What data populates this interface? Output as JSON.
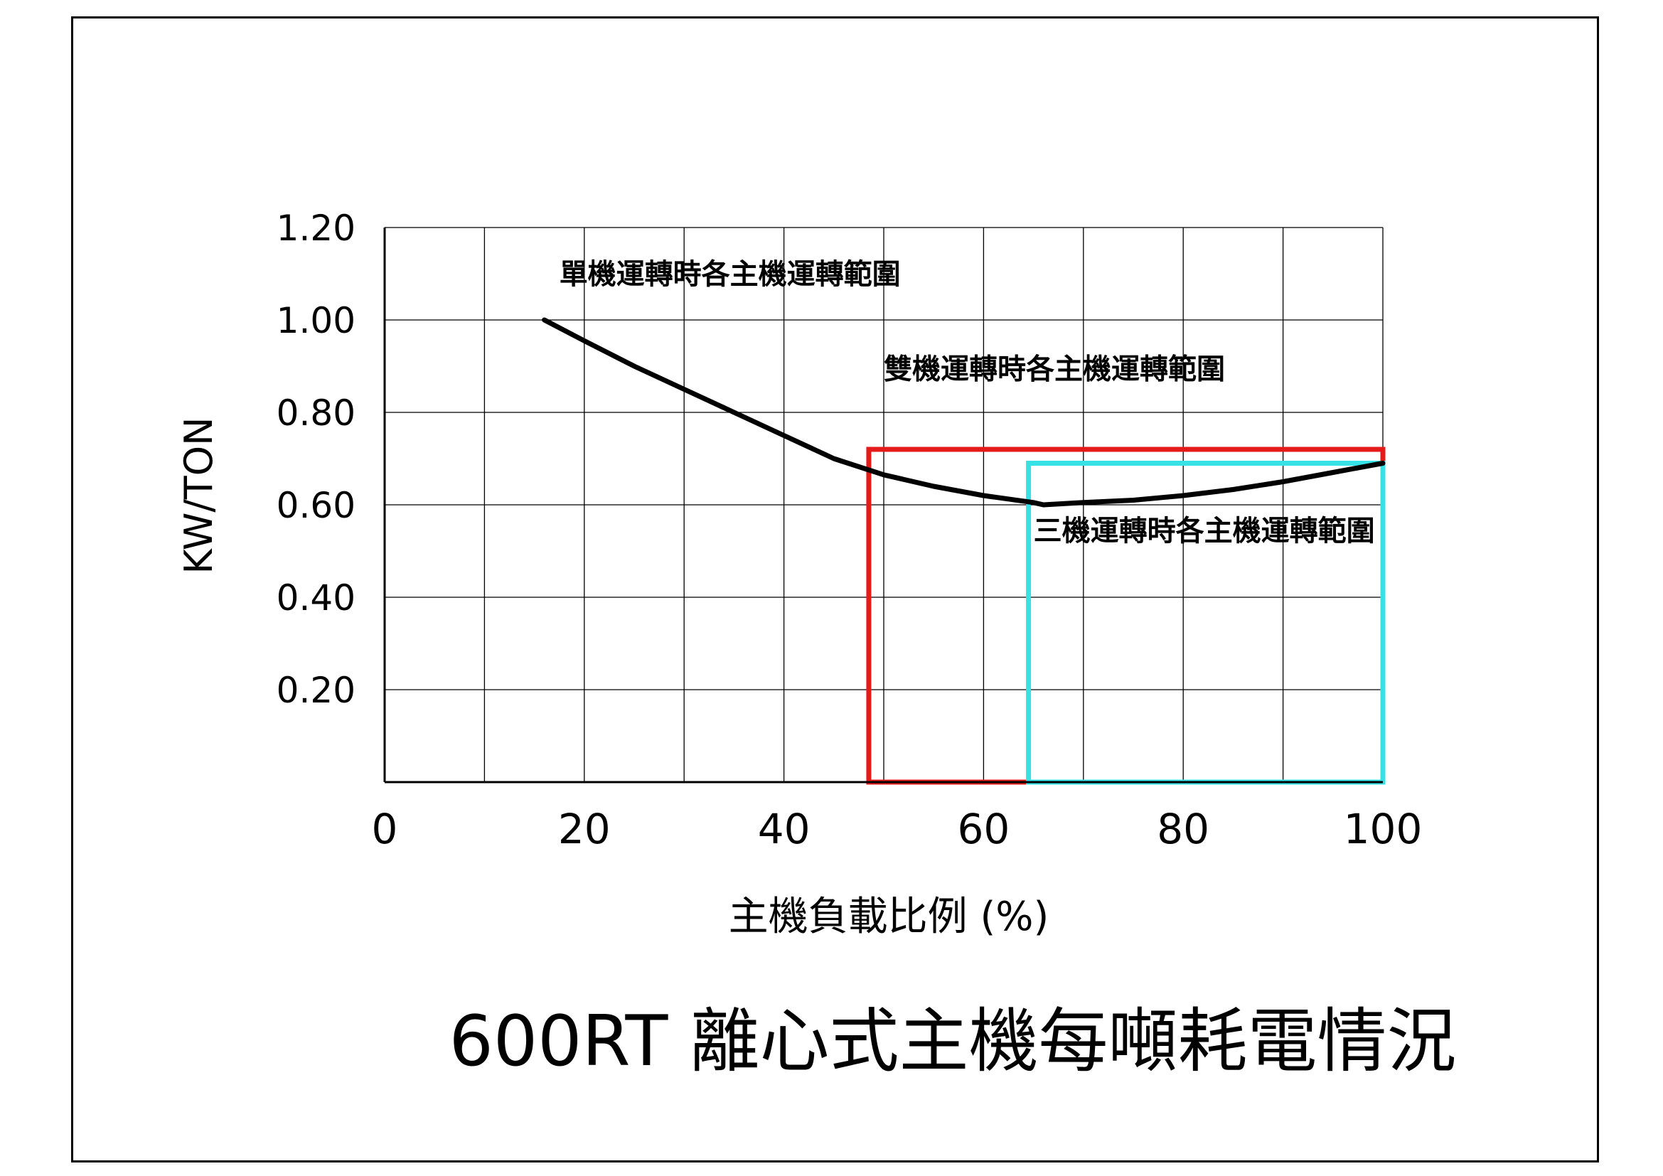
{
  "chart_data": {
    "type": "line",
    "title": "600RT 離心式主機每噸耗電情況",
    "xlabel": "主機負載比例 (%)",
    "ylabel": "KW/TON",
    "xlim": [
      0,
      100
    ],
    "ylim": [
      0,
      1.2
    ],
    "x_ticks": [
      "0",
      "20",
      "40",
      "60",
      "80",
      "100"
    ],
    "y_ticks": [
      "0.20",
      "0.40",
      "0.60",
      "0.80",
      "1.00",
      "1.20"
    ],
    "grid": true,
    "series": [
      {
        "x": [
          16,
          20,
          25,
          30,
          35,
          40,
          45,
          50,
          55,
          60,
          65,
          66,
          70,
          75,
          80,
          85,
          90,
          95,
          100
        ],
        "y": [
          1.0,
          0.955,
          0.9,
          0.85,
          0.8,
          0.75,
          0.7,
          0.665,
          0.64,
          0.62,
          0.605,
          0.6,
          0.605,
          0.61,
          0.62,
          0.633,
          0.65,
          0.67,
          0.69
        ],
        "color": "#000000"
      }
    ],
    "regions": [
      {
        "x": [
          48.5,
          100
        ],
        "y": [
          0,
          0.72
        ],
        "color": "#e31b1b"
      },
      {
        "x": [
          64.5,
          100
        ],
        "y": [
          0,
          0.69
        ],
        "color": "#36e2e6"
      }
    ],
    "annotations": [
      {
        "text": "單機運轉時各主機運轉範圍",
        "x": 17.5,
        "y": 1.1
      },
      {
        "text": "雙機運轉時各主機運轉範圍",
        "x": 50,
        "y": 0.895
      },
      {
        "text": "三機運轉時各主機運轉範圍",
        "x": 65,
        "y": 0.545
      }
    ]
  }
}
